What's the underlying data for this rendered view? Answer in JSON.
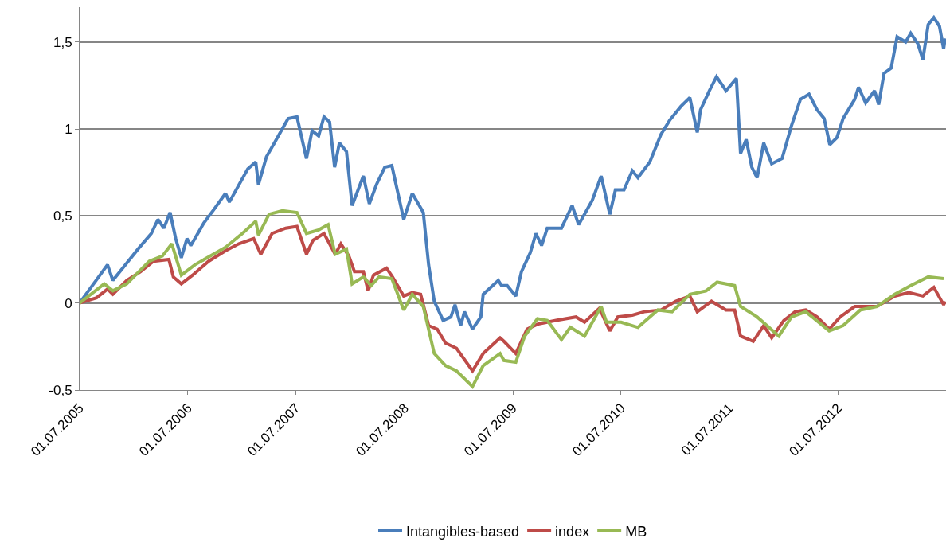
{
  "chart_data": {
    "type": "line",
    "xlim": [
      "2005-07-01",
      "2013-07-01"
    ],
    "xticks": [
      {
        "value": "2005-07-01",
        "label": "01.07.2005"
      },
      {
        "value": "2006-07-01",
        "label": "01.07.2006"
      },
      {
        "value": "2007-07-01",
        "label": "01.07.2007"
      },
      {
        "value": "2008-07-01",
        "label": "01.07.2008"
      },
      {
        "value": "2009-07-01",
        "label": "01.07.2009"
      },
      {
        "value": "2010-07-01",
        "label": "01.07.2010"
      },
      {
        "value": "2011-07-01",
        "label": "01.07.2011"
      },
      {
        "value": "2012-07-01",
        "label": "01.07.2012"
      }
    ],
    "ylim": [
      -0.5,
      1.7
    ],
    "yticks": [
      {
        "value": -0.5,
        "label": "-0,5"
      },
      0,
      {
        "value": 0.5,
        "label": "0,5"
      },
      1,
      {
        "value": 1.5,
        "label": "1,5"
      }
    ],
    "grid": "y",
    "legend": "bottom",
    "marker": "none",
    "line_style": "solid",
    "series": [
      {
        "name": "Intangibles-based",
        "color": "#4a7ebb",
        "x": [
          "2005-07-01",
          "2005-10-03",
          "2005-10-21",
          "2005-12-07",
          "2006-01-14",
          "2006-02-28",
          "2006-03-22",
          "2006-04-11",
          "2006-05-02",
          "2006-05-21",
          "2006-06-09",
          "2006-06-28",
          "2006-07-11",
          "2006-08-24",
          "2006-09-28",
          "2006-11-05",
          "2006-11-18",
          "2007-01-19",
          "2007-02-15",
          "2007-02-24",
          "2007-03-23",
          "2007-04-19",
          "2007-06-04",
          "2007-07-04",
          "2007-08-05",
          "2007-08-24",
          "2007-09-15",
          "2007-10-03",
          "2007-10-22",
          "2007-11-08",
          "2007-11-24",
          "2007-12-18",
          "2008-01-06",
          "2008-02-13",
          "2008-03-04",
          "2008-03-28",
          "2008-04-25",
          "2008-05-19",
          "2008-06-28",
          "2008-07-27",
          "2008-09-02",
          "2008-09-20",
          "2008-10-09",
          "2008-11-08",
          "2008-12-04",
          "2008-12-18",
          "2009-01-06",
          "2009-01-19",
          "2009-02-15",
          "2009-03-15",
          "2009-03-23",
          "2009-05-13",
          "2009-05-24",
          "2009-06-12",
          "2009-07-11",
          "2009-07-30",
          "2009-08-29",
          "2009-09-17",
          "2009-10-06",
          "2009-10-25",
          "2009-12-12",
          "2010-01-17",
          "2010-02-08",
          "2010-03-26",
          "2010-04-25",
          "2010-05-24",
          "2010-06-12",
          "2010-07-11",
          "2010-08-08",
          "2010-08-27",
          "2010-10-06",
          "2010-11-13",
          "2010-12-12",
          "2011-01-19",
          "2011-02-18",
          "2011-03-15",
          "2011-03-26",
          "2011-04-25",
          "2011-05-19",
          "2011-06-20",
          "2011-07-25",
          "2011-08-08",
          "2011-08-27",
          "2011-09-15",
          "2011-10-03",
          "2011-10-25",
          "2011-11-21",
          "2011-12-26",
          "2012-01-27",
          "2012-02-26",
          "2012-03-26",
          "2012-04-22",
          "2012-05-16",
          "2012-06-04",
          "2012-06-28",
          "2012-07-19",
          "2012-08-27",
          "2012-09-09",
          "2012-10-03",
          "2012-11-02",
          "2012-11-16",
          "2012-12-04",
          "2012-12-28",
          "2013-01-17",
          "2013-02-15",
          "2013-03-04",
          "2013-03-28",
          "2013-04-14",
          "2013-05-02",
          "2013-05-21",
          "2013-06-09",
          "2013-06-23",
          "2013-06-28"
        ],
        "values": [
          0,
          0.22,
          0.13,
          0.23,
          0.31,
          0.4,
          0.48,
          0.43,
          0.52,
          0.37,
          0.26,
          0.37,
          0.33,
          0.46,
          0.54,
          0.63,
          0.58,
          0.77,
          0.81,
          0.68,
          0.84,
          0.92,
          1.06,
          1.07,
          0.83,
          0.99,
          0.96,
          1.07,
          1.04,
          0.78,
          0.92,
          0.87,
          0.56,
          0.73,
          0.57,
          0.68,
          0.78,
          0.79,
          0.48,
          0.63,
          0.52,
          0.22,
          0.01,
          -0.1,
          -0.08,
          -0.01,
          -0.13,
          -0.05,
          -0.15,
          -0.08,
          0.05,
          0.13,
          0.1,
          0.1,
          0.04,
          0.18,
          0.29,
          0.4,
          0.33,
          0.43,
          0.43,
          0.56,
          0.45,
          0.59,
          0.73,
          0.51,
          0.65,
          0.65,
          0.76,
          0.72,
          0.81,
          0.97,
          1.05,
          1.13,
          1.18,
          0.98,
          1.11,
          1.22,
          1.3,
          1.22,
          1.29,
          0.86,
          0.94,
          0.78,
          0.72,
          0.92,
          0.8,
          0.83,
          1.02,
          1.17,
          1.2,
          1.11,
          1.06,
          0.91,
          0.95,
          1.06,
          1.17,
          1.24,
          1.15,
          1.22,
          1.14,
          1.32,
          1.35,
          1.53,
          1.5,
          1.55,
          1.49,
          1.4,
          1.6,
          1.64,
          1.59,
          1.46,
          1.52
        ]
      },
      {
        "name": "index",
        "color": "#be4b48",
        "x": [
          "2005-07-01",
          "2005-08-27",
          "2005-10-03",
          "2005-10-21",
          "2005-12-07",
          "2006-01-22",
          "2006-03-07",
          "2006-04-28",
          "2006-05-13",
          "2006-06-09",
          "2006-07-17",
          "2006-09-09",
          "2006-11-05",
          "2006-12-20",
          "2007-02-08",
          "2007-03-04",
          "2007-04-11",
          "2007-05-27",
          "2007-07-04",
          "2007-08-05",
          "2007-08-27",
          "2007-10-03",
          "2007-11-10",
          "2007-11-29",
          "2007-12-26",
          "2008-01-14",
          "2008-02-13",
          "2008-02-29",
          "2008-03-18",
          "2008-05-01",
          "2008-05-21",
          "2008-06-28",
          "2008-07-27",
          "2008-08-24",
          "2008-09-20",
          "2008-10-19",
          "2008-11-16",
          "2008-12-23",
          "2009-02-15",
          "2009-03-23",
          "2009-05-19",
          "2009-06-01",
          "2009-07-11",
          "2009-08-18",
          "2009-09-25",
          "2009-11-24",
          "2010-01-30",
          "2010-02-28",
          "2010-04-19",
          "2010-05-24",
          "2010-06-20",
          "2010-08-08",
          "2010-09-17",
          "2010-11-13",
          "2011-01-01",
          "2011-02-18",
          "2011-03-15",
          "2011-05-02",
          "2011-06-20",
          "2011-07-19",
          "2011-08-08",
          "2011-09-20",
          "2011-10-25",
          "2011-11-21",
          "2012-01-01",
          "2012-02-08",
          "2012-03-15",
          "2012-04-22",
          "2012-06-02",
          "2012-07-09",
          "2012-08-27",
          "2012-11-10",
          "2013-01-09",
          "2013-02-26",
          "2013-04-14",
          "2013-05-21",
          "2013-06-23",
          "2013-06-28"
        ],
        "values": [
          0,
          0.03,
          0.08,
          0.05,
          0.13,
          0.18,
          0.24,
          0.25,
          0.15,
          0.11,
          0.16,
          0.24,
          0.3,
          0.34,
          0.37,
          0.28,
          0.4,
          0.43,
          0.44,
          0.28,
          0.36,
          0.4,
          0.28,
          0.34,
          0.27,
          0.18,
          0.18,
          0.07,
          0.16,
          0.2,
          0.15,
          0.04,
          0.06,
          0.05,
          -0.13,
          -0.15,
          -0.23,
          -0.26,
          -0.39,
          -0.29,
          -0.2,
          -0.22,
          -0.29,
          -0.15,
          -0.12,
          -0.1,
          -0.08,
          -0.11,
          -0.03,
          -0.16,
          -0.08,
          -0.07,
          -0.05,
          -0.04,
          0.01,
          0.04,
          -0.05,
          0.01,
          -0.04,
          -0.04,
          -0.19,
          -0.22,
          -0.13,
          -0.2,
          -0.1,
          -0.05,
          -0.04,
          -0.08,
          -0.15,
          -0.08,
          -0.02,
          -0.02,
          0.04,
          0.06,
          0.04,
          0.09,
          -0.01,
          0.01
        ]
      },
      {
        "name": "MB",
        "color": "#98b954",
        "x": [
          "2005-07-01",
          "2005-09-22",
          "2005-10-21",
          "2005-12-07",
          "2006-02-21",
          "2006-04-06",
          "2006-05-08",
          "2006-06-09",
          "2006-07-25",
          "2006-11-05",
          "2007-01-01",
          "2007-02-15",
          "2007-02-24",
          "2007-04-01",
          "2007-05-16",
          "2007-07-04",
          "2007-08-05",
          "2007-09-15",
          "2007-10-17",
          "2007-11-10",
          "2007-12-18",
          "2008-01-06",
          "2008-02-13",
          "2008-03-10",
          "2008-04-06",
          "2008-05-19",
          "2008-06-28",
          "2008-07-27",
          "2008-09-02",
          "2008-10-09",
          "2008-11-16",
          "2008-12-23",
          "2009-02-15",
          "2009-03-23",
          "2009-05-19",
          "2009-06-01",
          "2009-07-11",
          "2009-08-10",
          "2009-09-22",
          "2009-10-25",
          "2009-12-12",
          "2010-01-11",
          "2010-02-28",
          "2010-04-25",
          "2010-05-13",
          "2010-07-01",
          "2010-08-27",
          "2010-11-02",
          "2010-12-20",
          "2011-02-18",
          "2011-04-14",
          "2011-05-21",
          "2011-07-19",
          "2011-08-08",
          "2011-10-03",
          "2011-12-15",
          "2012-01-27",
          "2012-03-15",
          "2012-06-02",
          "2012-07-19",
          "2012-09-15",
          "2012-11-10",
          "2013-01-09",
          "2013-03-04",
          "2013-05-02",
          "2013-06-23"
        ],
        "values": [
          0,
          0.11,
          0.07,
          0.11,
          0.24,
          0.27,
          0.34,
          0.16,
          0.22,
          0.32,
          0.4,
          0.47,
          0.39,
          0.51,
          0.53,
          0.52,
          0.4,
          0.42,
          0.45,
          0.28,
          0.31,
          0.11,
          0.15,
          0.1,
          0.15,
          0.14,
          -0.04,
          0.05,
          -0.02,
          -0.29,
          -0.36,
          -0.39,
          -0.48,
          -0.36,
          -0.29,
          -0.33,
          -0.34,
          -0.19,
          -0.09,
          -0.1,
          -0.21,
          -0.14,
          -0.19,
          -0.02,
          -0.11,
          -0.11,
          -0.14,
          -0.04,
          -0.05,
          0.05,
          0.07,
          0.12,
          0.1,
          -0.02,
          -0.08,
          -0.19,
          -0.08,
          -0.05,
          -0.16,
          -0.13,
          -0.04,
          -0.02,
          0.05,
          0.1,
          0.15,
          0.14
        ]
      }
    ]
  }
}
